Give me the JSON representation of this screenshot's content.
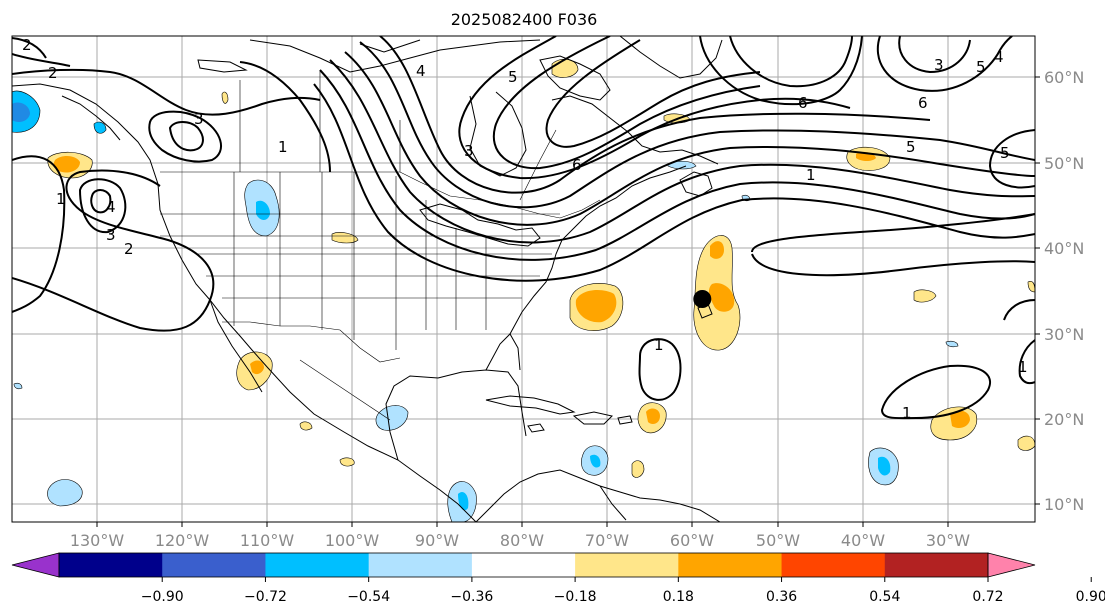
{
  "title": "2025082400 F036",
  "map": {
    "longitude_labels": [
      "130°W",
      "120°W",
      "110°W",
      "100°W",
      "90°W",
      "80°W",
      "70°W",
      "60°W",
      "50°W",
      "40°W",
      "30°W"
    ],
    "latitude_labels": [
      "60°N",
      "50°N",
      "40°N",
      "30°N",
      "20°N",
      "10°N"
    ],
    "marker": {
      "lon": -59,
      "lat": 34,
      "color": "#000000"
    },
    "contour_labels": [
      "2",
      "2",
      "2",
      "3",
      "3",
      "3",
      "3",
      "4",
      "4",
      "4",
      "5",
      "5",
      "5",
      "5",
      "6",
      "6",
      "6",
      "1",
      "1",
      "1",
      "1",
      "1",
      "1"
    ]
  },
  "colorbar": {
    "colors": [
      "#9932cc",
      "#00008b",
      "#3a5fcd",
      "#00bfff",
      "#b0e2ff",
      "#ffffff",
      "#ffe68a",
      "#ffa500",
      "#ff4500",
      "#b22222",
      "#ff82ab"
    ],
    "tick_labels": [
      "−0.90",
      "−0.72",
      "−0.54",
      "−0.36",
      "−0.18",
      "0.18",
      "0.36",
      "0.54",
      "0.72",
      "0.90"
    ]
  }
}
